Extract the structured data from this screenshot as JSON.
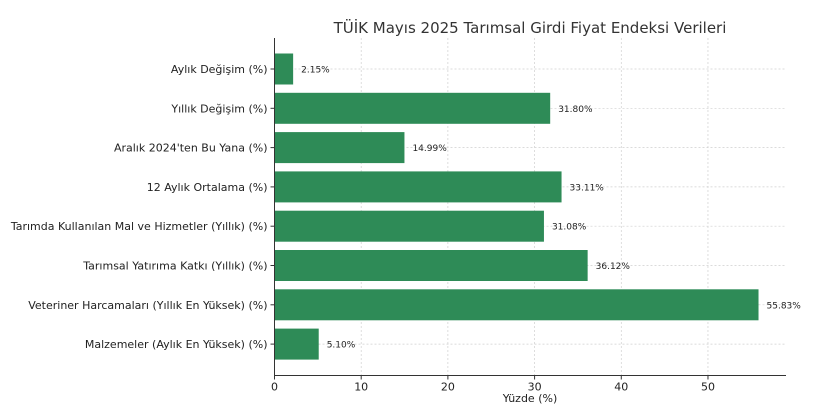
{
  "chart_data": {
    "type": "bar",
    "orientation": "horizontal",
    "title": "TÜİK Mayıs 2025 Tarımsal Girdi Fiyat Endeksi Verileri",
    "xlabel": "Yüzde (%)",
    "ylabel": "",
    "xlim": [
      0,
      59
    ],
    "xticks": [
      0,
      10,
      20,
      30,
      40,
      50
    ],
    "grid": true,
    "bar_color": "#2e8b57",
    "categories": [
      "Aylık Değişim (%)",
      "Yıllık Değişim (%)",
      "Aralık 2024'ten Bu Yana (%)",
      "12 Aylık Ortalama (%)",
      "Tarımda Kullanılan Mal ve Hizmetler (Yıllık) (%)",
      "Tarımsal Yatırıma Katkı (Yıllık) (%)",
      "Veteriner Harcamaları (Yıllık En Yüksek) (%)",
      "Malzemeler (Aylık En Yüksek) (%)"
    ],
    "values": [
      2.15,
      31.8,
      14.99,
      33.11,
      31.08,
      36.12,
      55.83,
      5.1
    ],
    "value_labels": [
      "2.15%",
      "31.80%",
      "14.99%",
      "33.11%",
      "31.08%",
      "36.12%",
      "55.83%",
      "5.10%"
    ]
  }
}
